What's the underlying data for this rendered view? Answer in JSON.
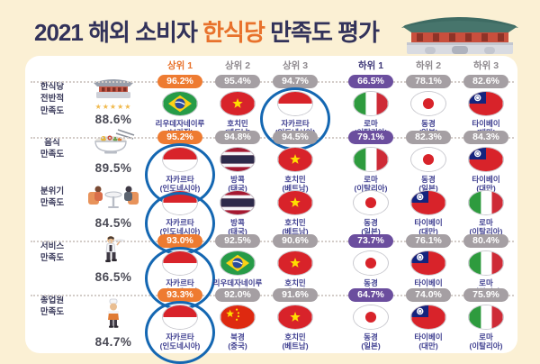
{
  "title": {
    "prefix": "2021 해외 소비자 ",
    "highlight": "한식당",
    "suffix": " 만족도 평가"
  },
  "colors": {
    "background": "#FBF0D4",
    "card": "#FFFFFF",
    "accent_top": "#EE7B31",
    "accent_bottom": "#6B4E9E",
    "badge_gray": "#A59FA3",
    "city_text": "#3D3D8F",
    "title_text": "#32325A",
    "title_highlight": "#E8722C",
    "circle_blue": "#1467B2"
  },
  "header": {
    "columns": [
      {
        "label": "상위 1",
        "style": "top"
      },
      {
        "label": "상위 2",
        "style": "plain"
      },
      {
        "label": "상위 3",
        "style": "plain"
      },
      {
        "label": "하위 1",
        "style": "bottom"
      },
      {
        "label": "하위 2",
        "style": "plain"
      },
      {
        "label": "하위 3",
        "style": "plain"
      }
    ]
  },
  "rows": [
    {
      "label": "한식당\n전반적\n만족도",
      "score": "88.6%",
      "icon": "hanok-gate",
      "stars": "★★★★★",
      "cells": [
        {
          "pct": "96.2%",
          "city": "리우데자네이루",
          "country": "(브라질)",
          "flag": "brazil",
          "circled": false
        },
        {
          "pct": "95.4%",
          "city": "호치민",
          "country": "(베트남)",
          "flag": "vietnam",
          "circled": false
        },
        {
          "pct": "94.7%",
          "city": "자카르타",
          "country": "(인도네시아)",
          "flag": "indonesia",
          "circled": true
        },
        {
          "pct": "66.5%",
          "city": "로마",
          "country": "(이탈리아)",
          "flag": "italy",
          "circled": false
        },
        {
          "pct": "78.1%",
          "city": "동경",
          "country": "(일본)",
          "flag": "japan",
          "circled": false
        },
        {
          "pct": "82.6%",
          "city": "타이베이",
          "country": "(대만)",
          "flag": "taiwan",
          "circled": false
        }
      ]
    },
    {
      "label": "음식\n만족도",
      "score": "89.5%",
      "icon": "food-bowl",
      "stars": null,
      "cells": [
        {
          "pct": "95.2%",
          "city": "자카르타",
          "country": "(인도네시아)",
          "flag": "indonesia",
          "circled": true
        },
        {
          "pct": "94.8%",
          "city": "방콕",
          "country": "(태국)",
          "flag": "thailand",
          "circled": false
        },
        {
          "pct": "94.5%",
          "city": "호치민",
          "country": "(베트남)",
          "flag": "vietnam",
          "circled": false
        },
        {
          "pct": "79.1%",
          "city": "로마",
          "country": "(이탈리아)",
          "flag": "italy",
          "circled": false
        },
        {
          "pct": "82.3%",
          "city": "동경",
          "country": "(일본)",
          "flag": "japan",
          "circled": false
        },
        {
          "pct": "84.3%",
          "city": "타이베이",
          "country": "(대만)",
          "flag": "taiwan",
          "circled": false
        }
      ]
    },
    {
      "label": "분위기\n만족도",
      "score": "84.5%",
      "icon": "dining-table",
      "stars": null,
      "cells": [
        {
          "pct": null,
          "city": "자카르타",
          "country": "(인도네시아)",
          "flag": "indonesia",
          "circled": true
        },
        {
          "pct": null,
          "city": "방콕",
          "country": "(태국)",
          "flag": "thailand",
          "circled": false
        },
        {
          "pct": null,
          "city": "호치민",
          "country": "(베트남)",
          "flag": "vietnam",
          "circled": false
        },
        {
          "pct": null,
          "city": "동경",
          "country": "(일본)",
          "flag": "japan",
          "circled": false
        },
        {
          "pct": null,
          "city": "타이베이",
          "country": "(대만)",
          "flag": "taiwan",
          "circled": false
        },
        {
          "pct": null,
          "city": "로마",
          "country": "(이탈리아)",
          "flag": "italy",
          "circled": false
        }
      ]
    },
    {
      "label": "서비스\n만족도",
      "score": "86.5%",
      "icon": "waiter",
      "stars": null,
      "cells": [
        {
          "pct": "93.0%",
          "city": "자카르타",
          "country": "(인도네시아)",
          "flag": "indonesia",
          "circled": true
        },
        {
          "pct": "92.5%",
          "city": "리우데자네이루",
          "country": "(브라질)",
          "flag": "brazil",
          "circled": false
        },
        {
          "pct": "90.6%",
          "city": "호치민",
          "country": "(베트남)",
          "flag": "vietnam",
          "circled": false
        },
        {
          "pct": "73.7%",
          "city": "동경",
          "country": "(일본)",
          "flag": "japan",
          "circled": false
        },
        {
          "pct": "76.1%",
          "city": "타이베이",
          "country": "(대만)",
          "flag": "taiwan",
          "circled": false
        },
        {
          "pct": "80.4%",
          "city": "로마",
          "country": "(이탈리아)",
          "flag": "italy",
          "circled": false
        }
      ]
    },
    {
      "label": "종업원\n만족도",
      "score": "84.7%",
      "icon": "chef",
      "stars": null,
      "cells": [
        {
          "pct": "93.3%",
          "city": "자카르타",
          "country": "(인도네시아)",
          "flag": "indonesia",
          "circled": true
        },
        {
          "pct": "92.0%",
          "city": "북경",
          "country": "(중국)",
          "flag": "china",
          "circled": false
        },
        {
          "pct": "91.6%",
          "city": "호치민",
          "country": "(베트남)",
          "flag": "vietnam",
          "circled": false
        },
        {
          "pct": "64.7%",
          "city": "동경",
          "country": "(일본)",
          "flag": "japan",
          "circled": false
        },
        {
          "pct": "74.0%",
          "city": "타이베이",
          "country": "(대만)",
          "flag": "taiwan",
          "circled": false
        },
        {
          "pct": "75.9%",
          "city": "로마",
          "country": "(이탈리아)",
          "flag": "italy",
          "circled": false
        }
      ]
    }
  ],
  "chart_data": {
    "type": "table",
    "title": "2021 해외 소비자 한식당 만족도 평가",
    "categories": [
      "한식당 전반적 만족도",
      "음식 만족도",
      "분위기 만족도",
      "서비스 만족도",
      "종업원 만족도"
    ],
    "overall_scores_pct": [
      88.6,
      89.5,
      84.5,
      86.5,
      84.7
    ],
    "rank_columns": [
      "상위 1",
      "상위 2",
      "상위 3",
      "하위 1",
      "하위 2",
      "하위 3"
    ],
    "rankings": [
      {
        "category": "한식당 전반적 만족도",
        "cities": [
          "리우데자네이루 (브라질)",
          "호치민 (베트남)",
          "자카르타 (인도네시아)",
          "로마 (이탈리아)",
          "동경 (일본)",
          "타이베이 (대만)"
        ],
        "values_pct": [
          96.2,
          95.4,
          94.7,
          66.5,
          78.1,
          82.6
        ]
      },
      {
        "category": "음식 만족도",
        "cities": [
          "자카르타 (인도네시아)",
          "방콕 (태국)",
          "호치민 (베트남)",
          "로마 (이탈리아)",
          "동경 (일본)",
          "타이베이 (대만)"
        ],
        "values_pct": [
          95.2,
          94.8,
          94.5,
          79.1,
          82.3,
          84.3
        ]
      },
      {
        "category": "분위기 만족도",
        "cities": [
          "자카르타 (인도네시아)",
          "방콕 (태국)",
          "호치민 (베트남)",
          "동경 (일본)",
          "타이베이 (대만)",
          "로마 (이탈리아)"
        ],
        "values_pct": [
          null,
          null,
          null,
          null,
          null,
          null
        ]
      },
      {
        "category": "서비스 만족도",
        "cities": [
          "자카르타 (인도네시아)",
          "리우데자네이루 (브라질)",
          "호치민 (베트남)",
          "동경 (일본)",
          "타이베이 (대만)",
          "로마 (이탈리아)"
        ],
        "values_pct": [
          93.0,
          92.5,
          90.6,
          73.7,
          76.1,
          80.4
        ]
      },
      {
        "category": "종업원 만족도",
        "cities": [
          "자카르타 (인도네시아)",
          "북경 (중국)",
          "호치민 (베트남)",
          "동경 (일본)",
          "타이베이 (대만)",
          "로마 (이탈리아)"
        ],
        "values_pct": [
          93.3,
          92.0,
          91.6,
          64.7,
          74.0,
          75.9
        ]
      }
    ],
    "highlight": "자카르타 (인도네시아) is circled in blue in every category",
    "legend_position": "none",
    "grid": false
  }
}
